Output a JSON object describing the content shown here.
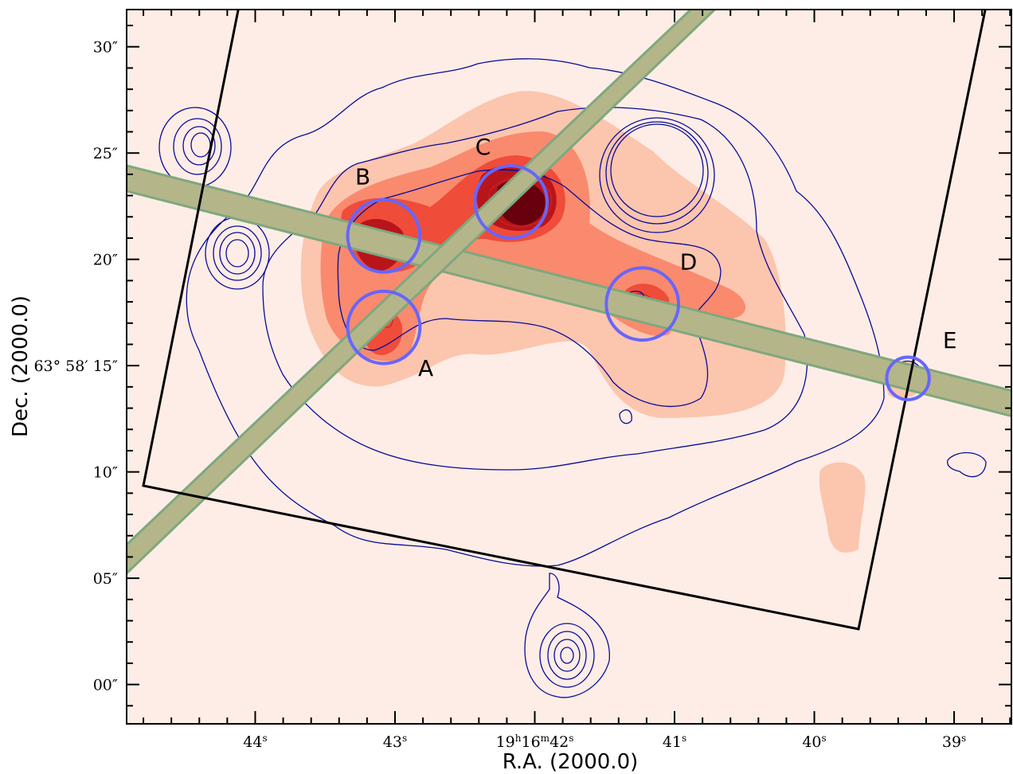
{
  "chart_data": {
    "type": "heatmap",
    "xlabel": "R.A. (2000.0)",
    "ylabel": "Dec. (2000.0)",
    "x_ticks": [
      {
        "value": 44,
        "main": "44",
        "sup": "s"
      },
      {
        "value": 43,
        "main": "43",
        "sup": "s"
      },
      {
        "value": 42,
        "pre": "19",
        "pre_sup": "h",
        "mid": "16",
        "mid_sup": "m",
        "main": "42",
        "sup": "s"
      },
      {
        "value": 41,
        "main": "41",
        "sup": "s"
      },
      {
        "value": 40,
        "main": "40",
        "sup": "s"
      },
      {
        "value": 39,
        "main": "39",
        "sup": "s"
      }
    ],
    "y_ticks": [
      {
        "value": 30,
        "label": "30″"
      },
      {
        "value": 25,
        "label": "25″"
      },
      {
        "value": 20,
        "label": "20″"
      },
      {
        "value": 15,
        "label": "63° 58′ 15″"
      },
      {
        "value": 10,
        "label": "10″"
      },
      {
        "value": 5,
        "label": "05″"
      },
      {
        "value": 0,
        "label": "00″"
      }
    ],
    "xlim": [
      44.92,
      38.59
    ],
    "ylim": [
      -1.85,
      31.75
    ],
    "regions": [
      {
        "label": "A",
        "ra": 43.08,
        "dec": 16.8,
        "radius_arcsec": 1.7,
        "label_ra": 42.78,
        "label_dec": 14.9
      },
      {
        "label": "B",
        "ra": 43.08,
        "dec": 21.1,
        "radius_arcsec": 1.7,
        "label_ra": 43.23,
        "label_dec": 23.9
      },
      {
        "label": "C",
        "ra": 42.17,
        "dec": 22.7,
        "radius_arcsec": 1.7,
        "label_ra": 42.37,
        "label_dec": 25.3
      },
      {
        "label": "D",
        "ra": 41.23,
        "dec": 17.9,
        "radius_arcsec": 1.7,
        "label_ra": 40.9,
        "label_dec": 19.9
      },
      {
        "label": "E",
        "ra": 39.33,
        "dec": 14.4,
        "radius_arcsec": 1.0,
        "label_ra": 39.03,
        "label_dec": 16.2
      }
    ],
    "colors": {
      "background": "#feede6",
      "emission_light": "#fcc5ae",
      "emission_mid": "#f98a6e",
      "emission_high": "#ef4c3a",
      "emission_peak": "#b8151b",
      "emission_max": "#67000d",
      "contour": "#0a0a9a",
      "region_circle": "#6666ff",
      "slit": "#b5b58a",
      "slit_edge": "#7ea87e",
      "footprint": "#000000"
    }
  }
}
